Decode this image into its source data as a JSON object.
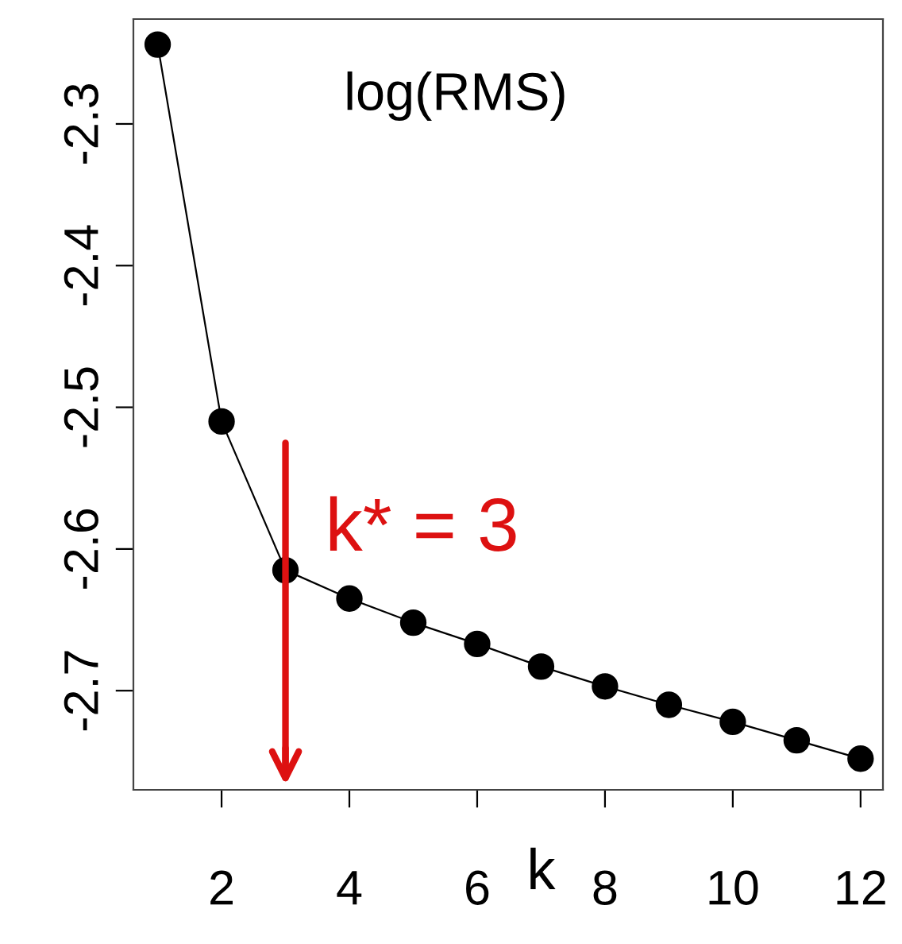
{
  "chart_data": {
    "type": "line",
    "xlabel": "k",
    "x": [
      1,
      2,
      3,
      4,
      5,
      6,
      7,
      8,
      9,
      10,
      11,
      12
    ],
    "series": [
      {
        "color": "#000000",
        "values": [
          -2.244,
          -2.51,
          -2.615,
          -2.635,
          -2.652,
          -2.667,
          -2.683,
          -2.697,
          -2.71,
          -2.722,
          -2.735,
          -2.748
        ]
      }
    ],
    "marker": "circle",
    "xlim": [
      0.62,
      12.35
    ],
    "xticks": [
      2,
      4,
      6,
      8,
      10,
      12
    ],
    "ylim": [
      -2.77,
      -2.226
    ],
    "yticks": [
      -2.3,
      -2.4,
      -2.5,
      -2.6,
      -2.7
    ],
    "grid": false,
    "legend": false,
    "ref_lines": [
      {
        "axis": "x",
        "value": 3,
        "label": "k* = 3",
        "color": "#dd1111"
      }
    ],
    "annotations": [
      "log(RMS)"
    ]
  }
}
